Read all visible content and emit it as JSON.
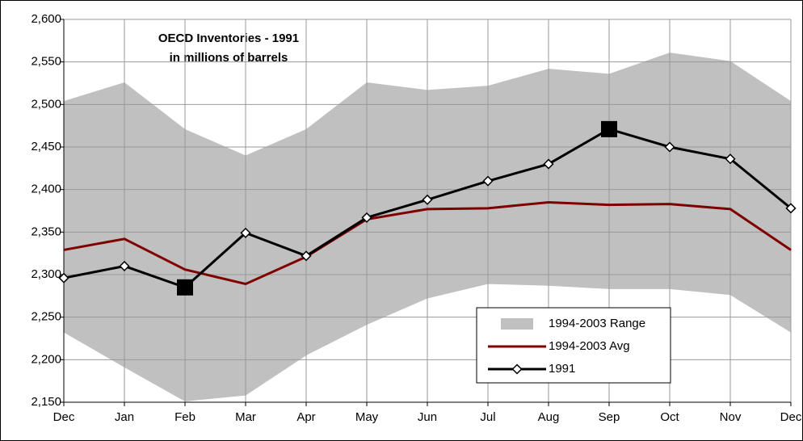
{
  "chart_data": {
    "type": "line",
    "title": "OECD Inventories - 1991",
    "subtitle": "in millions of barrels",
    "categories": [
      "Dec",
      "Jan",
      "Feb",
      "Mar",
      "Apr",
      "May",
      "Jun",
      "Jul",
      "Aug",
      "Sep",
      "Oct",
      "Nov",
      "Dec"
    ],
    "series": [
      {
        "name": "1994-2003 Range",
        "kind": "range",
        "color": "#c0c0c0",
        "lower": [
          2232,
          2191,
          2151,
          2158,
          2205,
          2241,
          2272,
          2289,
          2287,
          2283,
          2283,
          2276,
          2232
        ],
        "upper": [
          2504,
          2526,
          2471,
          2440,
          2471,
          2526,
          2517,
          2522,
          2542,
          2536,
          2561,
          2551,
          2504
        ]
      },
      {
        "name": "1994-2003 Avg",
        "color": "#800000",
        "values": [
          2329,
          2342,
          2306,
          2289,
          2321,
          2365,
          2377,
          2378,
          2385,
          2382,
          2383,
          2377,
          2329
        ]
      },
      {
        "name": "1991",
        "color": "#000000",
        "marker": "diamond",
        "highlight": [
          2,
          9
        ],
        "values": [
          2296,
          2310,
          2285,
          2349,
          2322,
          2367,
          2388,
          2410,
          2430,
          2471,
          2450,
          2436,
          2378
        ]
      }
    ],
    "ylim": [
      2150,
      2600
    ],
    "yticks": [
      {
        "value": 2150,
        "label": "2,150"
      },
      {
        "value": 2200,
        "label": "2,200"
      },
      {
        "value": 2250,
        "label": "2,250"
      },
      {
        "value": 2300,
        "label": "2,300"
      },
      {
        "value": 2350,
        "label": "2,350"
      },
      {
        "value": 2400,
        "label": "2,400"
      },
      {
        "value": 2450,
        "label": "2,450"
      },
      {
        "value": 2500,
        "label": "2,500"
      },
      {
        "value": 2550,
        "label": "2,550"
      },
      {
        "value": 2600,
        "label": "2,600"
      }
    ],
    "grid": true,
    "legend": "lower-right"
  }
}
